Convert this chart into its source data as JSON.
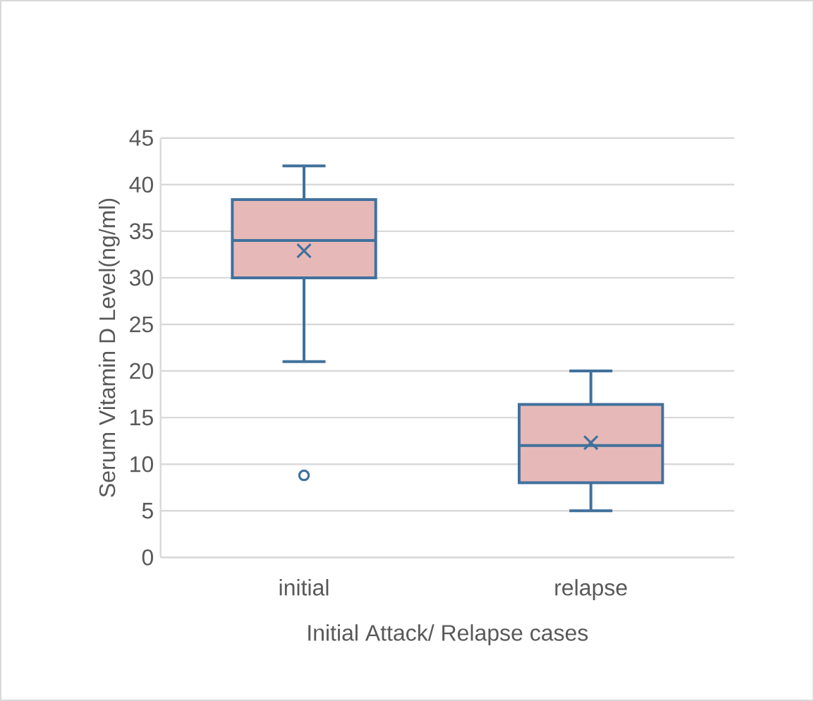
{
  "chart_data": {
    "type": "box",
    "xlabel": "Initial Attack/ Relapse cases",
    "ylabel": "Serum Vitamin D Level(ng/ml)",
    "categories": [
      "initial",
      "relapse"
    ],
    "series": [
      {
        "color": "#e6b9b8",
        "boxes": [
          {
            "low": 21,
            "q1": 30,
            "median": 34,
            "q3": 38.4,
            "high": 42,
            "mean": 32.9,
            "outliers": [
              8.8
            ]
          },
          {
            "low": 5,
            "q1": 8,
            "median": 12,
            "q3": 16.4,
            "high": 20,
            "mean": 12.3
          }
        ]
      }
    ],
    "ylim": [
      0,
      45
    ],
    "yticks": [
      0,
      5,
      10,
      15,
      20,
      25,
      30,
      35,
      40,
      45
    ],
    "grid": "y"
  }
}
